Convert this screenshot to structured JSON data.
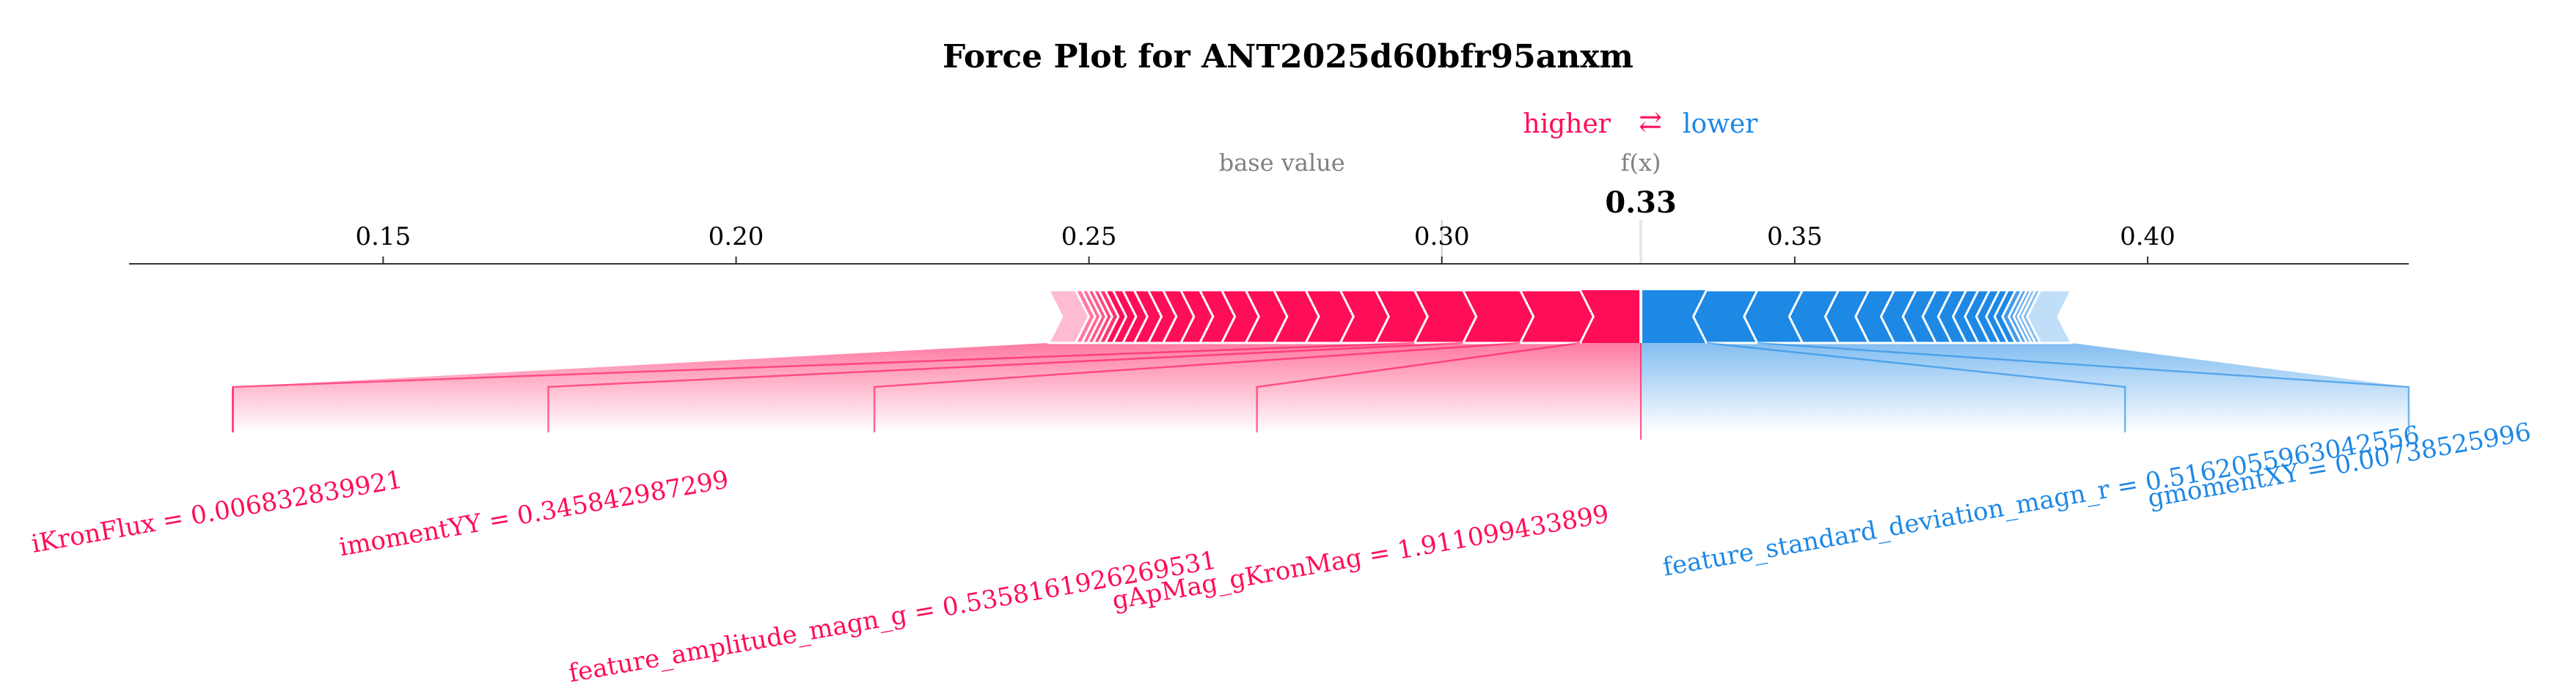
{
  "chart_data": {
    "type": "force",
    "title": "Force Plot for ANT2025d60bfr95anxm",
    "legend": {
      "higher": "higher",
      "arrow": "⇄",
      "lower": "lower"
    },
    "base_value_label": "base value",
    "fx_label": "f(x)",
    "fx_value_label": "0.33",
    "base_value": 0.3,
    "output_value": 0.3282,
    "xlim": [
      0.114,
      0.437
    ],
    "ticks": [
      {
        "value": 0.15,
        "label": "0.15"
      },
      {
        "value": 0.2,
        "label": "0.20"
      },
      {
        "value": 0.25,
        "label": "0.25"
      },
      {
        "value": 0.3,
        "label": "0.30"
      },
      {
        "value": 0.35,
        "label": "0.35"
      },
      {
        "value": 0.4,
        "label": "0.40"
      }
    ],
    "positive_segments": [
      [
        0.3196,
        0.3282
      ],
      [
        0.3111,
        0.3196
      ],
      [
        0.303,
        0.3111
      ],
      [
        0.2961,
        0.303
      ],
      [
        0.2906,
        0.2961
      ],
      [
        0.2856,
        0.2906
      ],
      [
        0.2807,
        0.2856
      ],
      [
        0.2762,
        0.2807
      ],
      [
        0.2722,
        0.2762
      ],
      [
        0.2688,
        0.2722
      ],
      [
        0.2657,
        0.2688
      ],
      [
        0.263,
        0.2657
      ],
      [
        0.2605,
        0.263
      ],
      [
        0.2584,
        0.2605
      ],
      [
        0.2564,
        0.2584
      ],
      [
        0.2548,
        0.2564
      ],
      [
        0.2534,
        0.2548
      ],
      [
        0.2523,
        0.2534
      ],
      [
        0.2514,
        0.2523
      ],
      [
        0.2506,
        0.2514
      ],
      [
        0.2498,
        0.2506
      ],
      [
        0.249,
        0.2498
      ],
      [
        0.2481,
        0.249
      ],
      [
        0.2443,
        0.2481
      ]
    ],
    "negative_segments": [
      [
        0.3282,
        0.3375
      ],
      [
        0.3375,
        0.3447
      ],
      [
        0.3447,
        0.3511
      ],
      [
        0.3511,
        0.3562
      ],
      [
        0.3562,
        0.3605
      ],
      [
        0.3605,
        0.3641
      ],
      [
        0.3641,
        0.3672
      ],
      [
        0.3672,
        0.37
      ],
      [
        0.37,
        0.3722
      ],
      [
        0.3722,
        0.3743
      ],
      [
        0.3743,
        0.376
      ],
      [
        0.376,
        0.3776
      ],
      [
        0.3776,
        0.379
      ],
      [
        0.379,
        0.3802
      ],
      [
        0.3802,
        0.3813
      ],
      [
        0.3813,
        0.3822
      ],
      [
        0.3822,
        0.3829
      ],
      [
        0.3829,
        0.3835
      ],
      [
        0.3835,
        0.3841
      ],
      [
        0.3841,
        0.3848
      ],
      [
        0.3848,
        0.3892
      ]
    ],
    "positive_labels": [
      {
        "text": "gApMag_gKronMag = 1.911099433899",
        "from": [
          0.3196,
          0.3282
        ],
        "value": 0.2738
      },
      {
        "text": "feature_amplitude_magn_g = 0.5358161926269531",
        "from": [
          0.3111,
          0.3196
        ],
        "value": 0.2196
      },
      {
        "text": "imomentYY = 0.345842987299",
        "from": [
          0.303,
          0.3111
        ],
        "value": 0.1734
      },
      {
        "text": "iKronFlux = 0.006832839921",
        "from": [
          0.2961,
          0.303
        ],
        "value": 0.1287
      }
    ],
    "negative_labels": [
      {
        "text": "feature_standard_deviation_magn_r = 0.5162055963042556",
        "from": [
          0.3282,
          0.3375
        ],
        "value": 0.3968
      },
      {
        "text": "gmomentXY = 0.00738525996",
        "from": [
          0.3375,
          0.3447
        ],
        "value": 0.437
      }
    ],
    "colors": {
      "positive": "#ff0d57",
      "negative": "#1e88e5",
      "base_text": "#808080"
    }
  }
}
